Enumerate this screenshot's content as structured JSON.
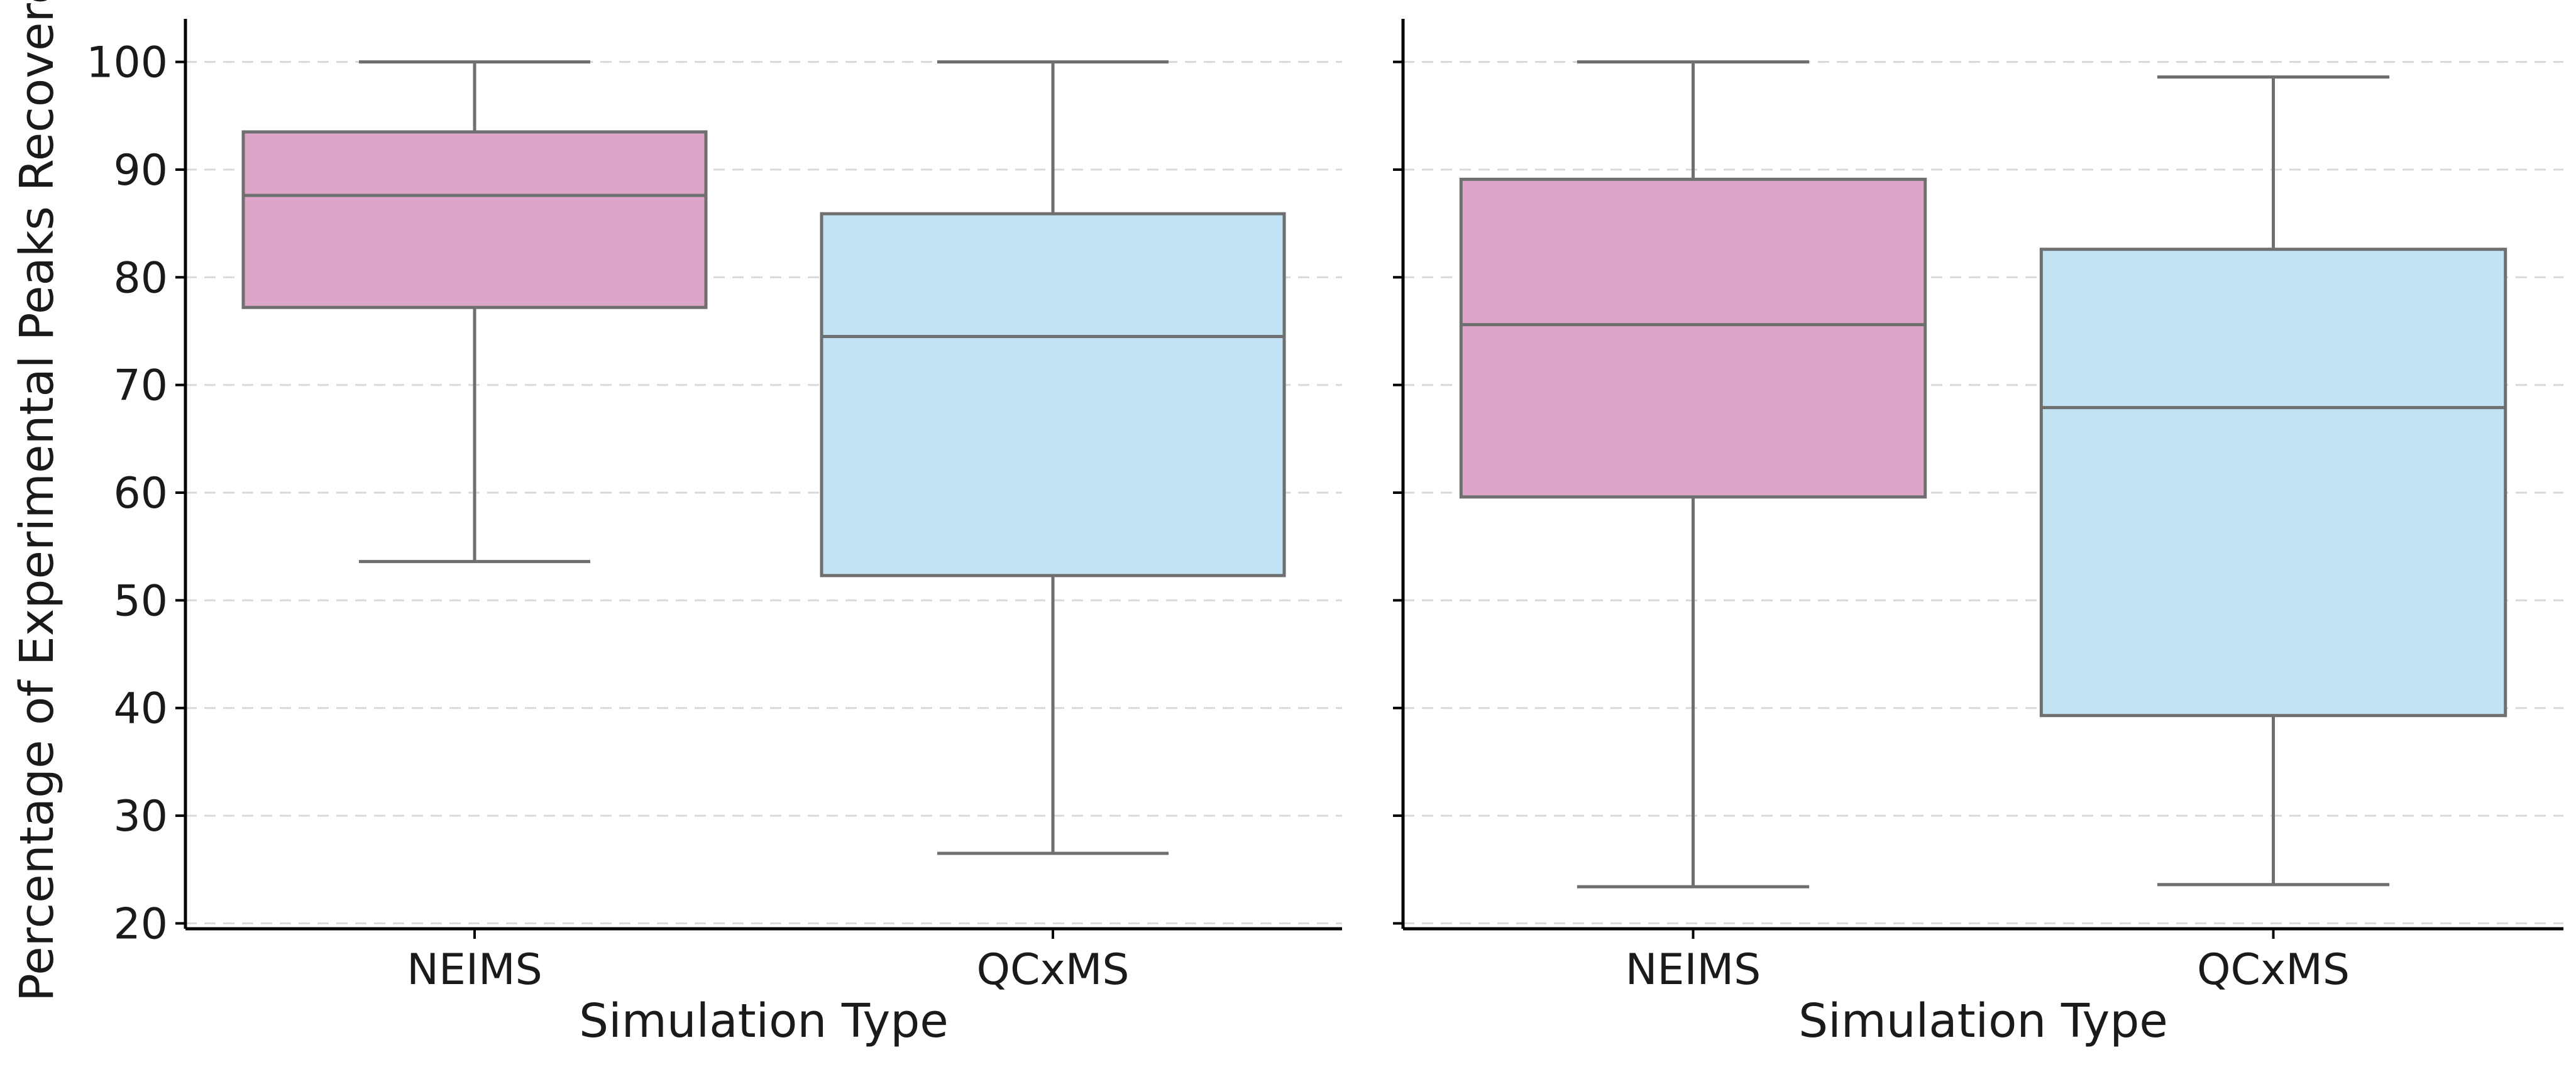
{
  "chart_data": [
    {
      "type": "box",
      "xlabel": "Simulation Type",
      "ylabel": "Percentage of Experimental Peaks Recovered",
      "ylim": [
        19.5,
        104
      ],
      "yticks": [
        20,
        30,
        40,
        50,
        60,
        70,
        80,
        90,
        100
      ],
      "grid": "y dashed",
      "categories": [
        "NEIMS",
        "QCxMS"
      ],
      "boxes": [
        {
          "category": "NEIMS",
          "whisker_low": 53.6,
          "q1": 77.2,
          "median": 87.6,
          "q3": 93.5,
          "whisker_high": 100,
          "color": "#DDA5C8"
        },
        {
          "category": "QCxMS",
          "whisker_low": 26.5,
          "q1": 52.3,
          "median": 74.5,
          "q3": 85.9,
          "whisker_high": 100,
          "color": "#C2E3F4"
        }
      ]
    },
    {
      "type": "box",
      "xlabel": "Simulation Type",
      "ylabel": "",
      "ylim": [
        19.5,
        104
      ],
      "yticks": [
        20,
        30,
        40,
        50,
        60,
        70,
        80,
        90,
        100
      ],
      "grid": "y dashed",
      "categories": [
        "NEIMS",
        "QCxMS"
      ],
      "boxes": [
        {
          "category": "NEIMS",
          "whisker_low": 23.4,
          "q1": 59.6,
          "median": 75.6,
          "q3": 89.1,
          "whisker_high": 100,
          "color": "#DDA5C8"
        },
        {
          "category": "QCxMS",
          "whisker_low": 23.6,
          "q1": 39.3,
          "median": 67.9,
          "q3": 82.6,
          "whisker_high": 98.6,
          "color": "#C2E3F4"
        }
      ]
    }
  ]
}
